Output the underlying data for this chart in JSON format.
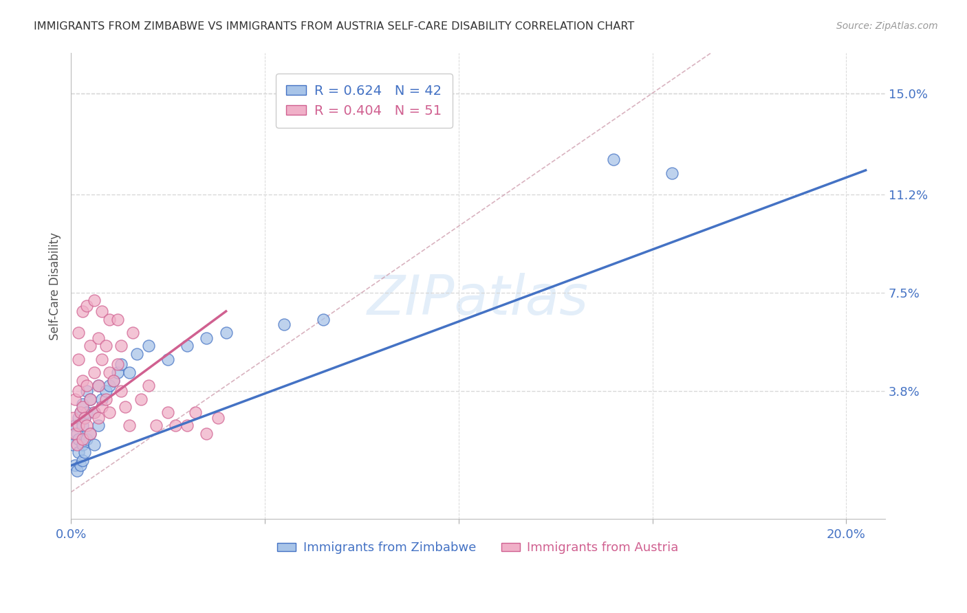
{
  "title": "IMMIGRANTS FROM ZIMBABWE VS IMMIGRANTS FROM AUSTRIA SELF-CARE DISABILITY CORRELATION CHART",
  "source": "Source: ZipAtlas.com",
  "ylabel": "Self-Care Disability",
  "xlim": [
    0.0,
    0.21
  ],
  "ylim": [
    -0.01,
    0.165
  ],
  "xticks": [
    0.0,
    0.05,
    0.1,
    0.15,
    0.2
  ],
  "xtick_labels": [
    "0.0%",
    "",
    "",
    "",
    "20.0%"
  ],
  "ytick_labels_right": [
    "15.0%",
    "11.2%",
    "7.5%",
    "3.8%"
  ],
  "ytick_vals_right": [
    0.15,
    0.112,
    0.075,
    0.038
  ],
  "legend_zimbabwe": "R = 0.624   N = 42",
  "legend_austria": "R = 0.404   N = 51",
  "legend_label_zimbabwe": "Immigrants from Zimbabwe",
  "legend_label_austria": "Immigrants from Austria",
  "color_zimbabwe": "#a8c4e8",
  "color_austria": "#f0b0c8",
  "color_line_zimbabwe": "#4472c4",
  "color_line_austria": "#d06090",
  "color_diagonal": "#d0a0b0",
  "color_title": "#333333",
  "color_source": "#999999",
  "color_axis_text": "#4472c4",
  "background": "#ffffff",
  "grid_color": "#d8d8d8",
  "watermark": "ZIPatlas",
  "zimbabwe_scatter_x": [
    0.0005,
    0.001,
    0.001,
    0.0015,
    0.0015,
    0.002,
    0.002,
    0.002,
    0.0025,
    0.0025,
    0.003,
    0.003,
    0.003,
    0.003,
    0.0035,
    0.0035,
    0.004,
    0.004,
    0.004,
    0.005,
    0.005,
    0.006,
    0.006,
    0.007,
    0.007,
    0.008,
    0.009,
    0.01,
    0.011,
    0.012,
    0.013,
    0.015,
    0.017,
    0.02,
    0.025,
    0.03,
    0.035,
    0.04,
    0.055,
    0.065,
    0.14,
    0.155
  ],
  "zimbabwe_scatter_y": [
    0.018,
    0.01,
    0.025,
    0.008,
    0.022,
    0.015,
    0.02,
    0.028,
    0.01,
    0.03,
    0.012,
    0.018,
    0.025,
    0.033,
    0.015,
    0.028,
    0.02,
    0.03,
    0.038,
    0.022,
    0.035,
    0.018,
    0.03,
    0.025,
    0.04,
    0.035,
    0.038,
    0.04,
    0.042,
    0.045,
    0.048,
    0.045,
    0.052,
    0.055,
    0.05,
    0.055,
    0.058,
    0.06,
    0.063,
    0.065,
    0.125,
    0.12
  ],
  "austria_scatter_x": [
    0.0005,
    0.001,
    0.001,
    0.0015,
    0.002,
    0.002,
    0.002,
    0.0025,
    0.003,
    0.003,
    0.003,
    0.0035,
    0.004,
    0.004,
    0.005,
    0.005,
    0.005,
    0.006,
    0.006,
    0.007,
    0.007,
    0.007,
    0.008,
    0.008,
    0.009,
    0.009,
    0.01,
    0.01,
    0.011,
    0.012,
    0.013,
    0.013,
    0.014,
    0.015,
    0.016,
    0.018,
    0.02,
    0.022,
    0.025,
    0.027,
    0.03,
    0.032,
    0.035,
    0.038,
    0.002,
    0.003,
    0.004,
    0.006,
    0.008,
    0.01,
    0.012
  ],
  "austria_scatter_y": [
    0.028,
    0.022,
    0.035,
    0.018,
    0.025,
    0.038,
    0.05,
    0.03,
    0.02,
    0.032,
    0.042,
    0.028,
    0.025,
    0.04,
    0.022,
    0.035,
    0.055,
    0.03,
    0.045,
    0.028,
    0.04,
    0.058,
    0.032,
    0.05,
    0.035,
    0.055,
    0.03,
    0.045,
    0.042,
    0.048,
    0.038,
    0.055,
    0.032,
    0.025,
    0.06,
    0.035,
    0.04,
    0.025,
    0.03,
    0.025,
    0.025,
    0.03,
    0.022,
    0.028,
    0.06,
    0.068,
    0.07,
    0.072,
    0.068,
    0.065,
    0.065
  ],
  "blue_line_x": [
    0.0,
    0.205
  ],
  "blue_line_y": [
    0.01,
    0.121
  ],
  "pink_line_x": [
    0.0,
    0.04
  ],
  "pink_line_y": [
    0.025,
    0.068
  ],
  "diag_line_x": [
    0.0,
    0.165
  ],
  "diag_line_y": [
    0.0,
    0.165
  ]
}
